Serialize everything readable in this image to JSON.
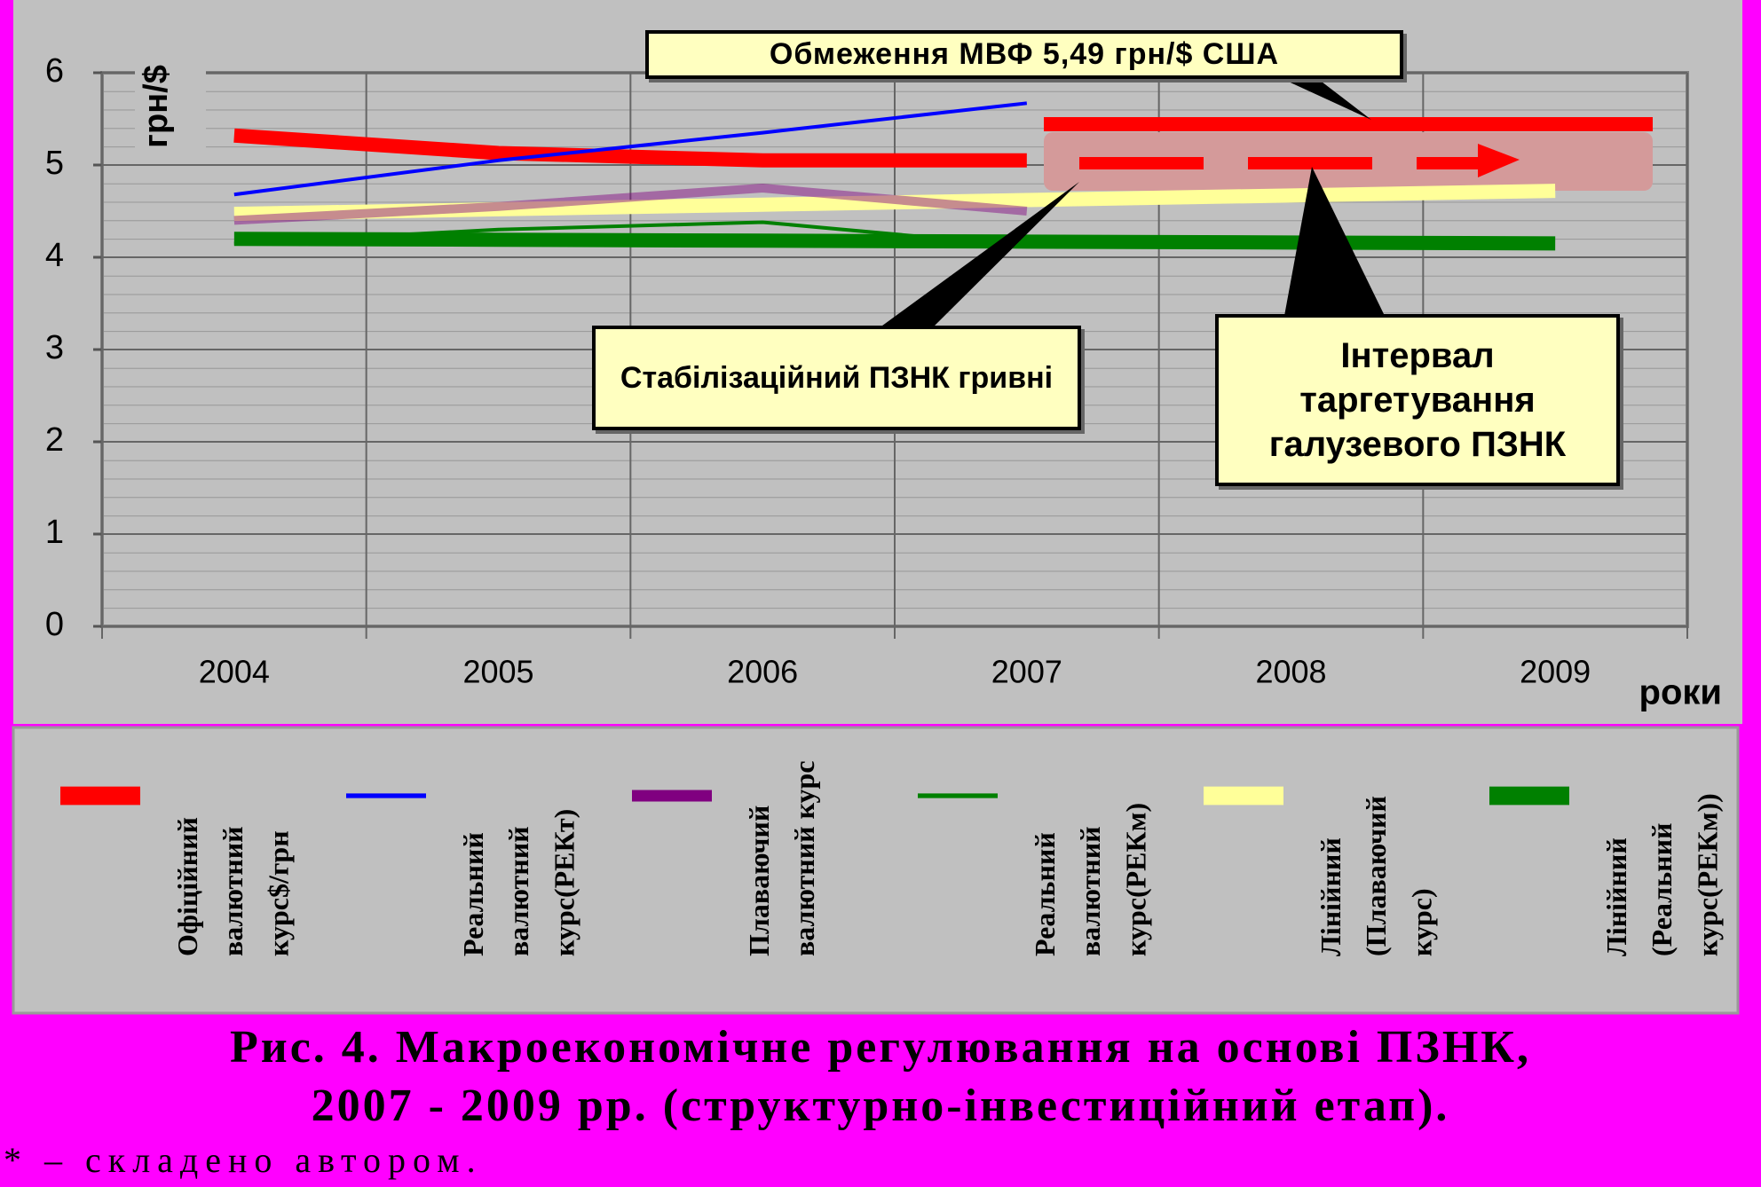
{
  "chart_data": {
    "type": "line",
    "y_label": "грн/$",
    "x_label": "роки",
    "categories": [
      "2004",
      "2005",
      "2006",
      "2007",
      "2008",
      "2009"
    ],
    "ylim": [
      0,
      6
    ],
    "yticks": [
      0,
      1,
      2,
      3,
      4,
      5,
      6
    ],
    "grid": true,
    "series": [
      {
        "name": "Офіційний валютний курс$/грн",
        "color": "#ff0000",
        "values": [
          5.32,
          5.13,
          5.05,
          5.05,
          null,
          null
        ]
      },
      {
        "name": "Реальний валютний курс(РЕКт)",
        "color": "#0000ff",
        "values": [
          4.68,
          5.05,
          5.35,
          5.67,
          null,
          null
        ]
      },
      {
        "name": "Плаваючий валютний курс",
        "color": "#800080",
        "values": [
          4.4,
          4.55,
          4.75,
          4.5,
          null,
          null
        ]
      },
      {
        "name": "Реальний валютний курс(РЕКм)",
        "color": "#008000",
        "values": [
          4.15,
          4.3,
          4.38,
          4.12,
          null,
          null
        ]
      },
      {
        "name": "Лінійний (Плаваючий курс)",
        "color": "#ffff99",
        "values": [
          4.47,
          4.52,
          4.57,
          4.62,
          4.67,
          4.72
        ]
      },
      {
        "name": "Лінійний (Реальний курс(РЕКм))",
        "color": "#008000",
        "values": [
          4.2,
          4.19,
          4.18,
          4.17,
          4.16,
          4.15
        ]
      }
    ],
    "annotations": [
      "Обмеження МВФ 5,49 грн/$ США",
      "Стабілізаційний ПЗНК гривні",
      "Інтервал таргетування галузевого ПЗНК"
    ],
    "caption": [
      "Рис. 4. Макроекономічне регулювання на основі ПЗНК,",
      "2007 - 2009 рр. (структурно-інвестиційний етап)."
    ],
    "note": "* – складено автором."
  }
}
